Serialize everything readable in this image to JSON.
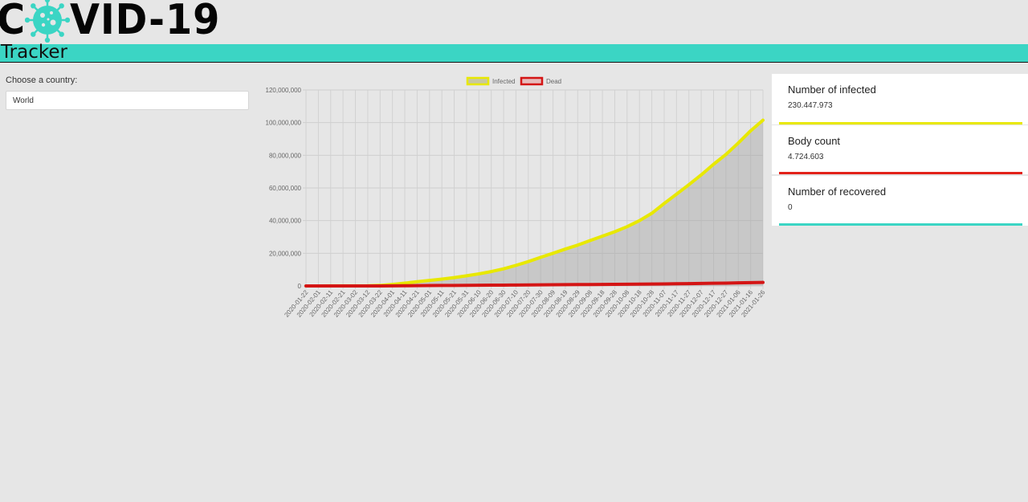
{
  "header": {
    "logo_left": "C",
    "logo_right": "VID-19",
    "subtitle": "Tracker",
    "accent_color": "#3bd5c4"
  },
  "country": {
    "label": "Choose a country:",
    "value": "World"
  },
  "chart_data": {
    "type": "line",
    "legend_position": "top",
    "legend": [
      "Infected",
      "Dead"
    ],
    "ylim": [
      0,
      120000000
    ],
    "y_ticks": [
      "0",
      "20,000,000",
      "40,000,000",
      "60,000,000",
      "80,000,000",
      "100,000,000",
      "120,000,000"
    ],
    "grid": true,
    "x": [
      "2020-01-22",
      "2020-02-01",
      "2020-02-11",
      "2020-02-21",
      "2020-03-02",
      "2020-03-12",
      "2020-03-22",
      "2020-04-01",
      "2020-04-11",
      "2020-04-21",
      "2020-05-01",
      "2020-05-11",
      "2020-05-21",
      "2020-05-31",
      "2020-06-10",
      "2020-06-20",
      "2020-06-30",
      "2020-07-10",
      "2020-07-20",
      "2020-07-30",
      "2020-08-09",
      "2020-08-19",
      "2020-08-29",
      "2020-09-08",
      "2020-09-18",
      "2020-09-28",
      "2020-10-08",
      "2020-10-18",
      "2020-10-28",
      "2020-11-07",
      "2020-11-17",
      "2020-11-27",
      "2020-12-07",
      "2020-12-17",
      "2020-12-27",
      "2021-01-06",
      "2021-01-16",
      "2021-01-26"
    ],
    "series": [
      {
        "name": "Infected",
        "color": "#e8e800",
        "values": [
          555,
          12000,
          45000,
          78000,
          91000,
          128000,
          340000,
          930000,
          1700000,
          2600000,
          3400000,
          4200000,
          5100000,
          6200000,
          7400000,
          8800000,
          10500000,
          12600000,
          14900000,
          17500000,
          20000000,
          22600000,
          25000000,
          27800000,
          30500000,
          33200000,
          36300000,
          40000000,
          44500000,
          50500000,
          56200000,
          62000000,
          68000000,
          74500000,
          80500000,
          87500000,
          95000000,
          101500000
        ]
      },
      {
        "name": "Dead",
        "color": "#d41515",
        "values": [
          17,
          250,
          1100,
          2300,
          3100,
          4700,
          15000,
          47000,
          110000,
          180000,
          240000,
          285000,
          330000,
          370000,
          410000,
          470000,
          515000,
          565000,
          620000,
          670000,
          730000,
          780000,
          840000,
          890000,
          950000,
          1000000,
          1060000,
          1120000,
          1180000,
          1260000,
          1340000,
          1430000,
          1530000,
          1630000,
          1740000,
          1880000,
          2030000,
          2160000
        ]
      }
    ]
  },
  "cards": [
    {
      "title": "Number of infected",
      "value": "230.447.973",
      "color": "#e8e800"
    },
    {
      "title": "Body count",
      "value": "4.724.603",
      "color": "#e2221a"
    },
    {
      "title": "Number of recovered",
      "value": "0",
      "color": "#3bd5c4"
    }
  ]
}
